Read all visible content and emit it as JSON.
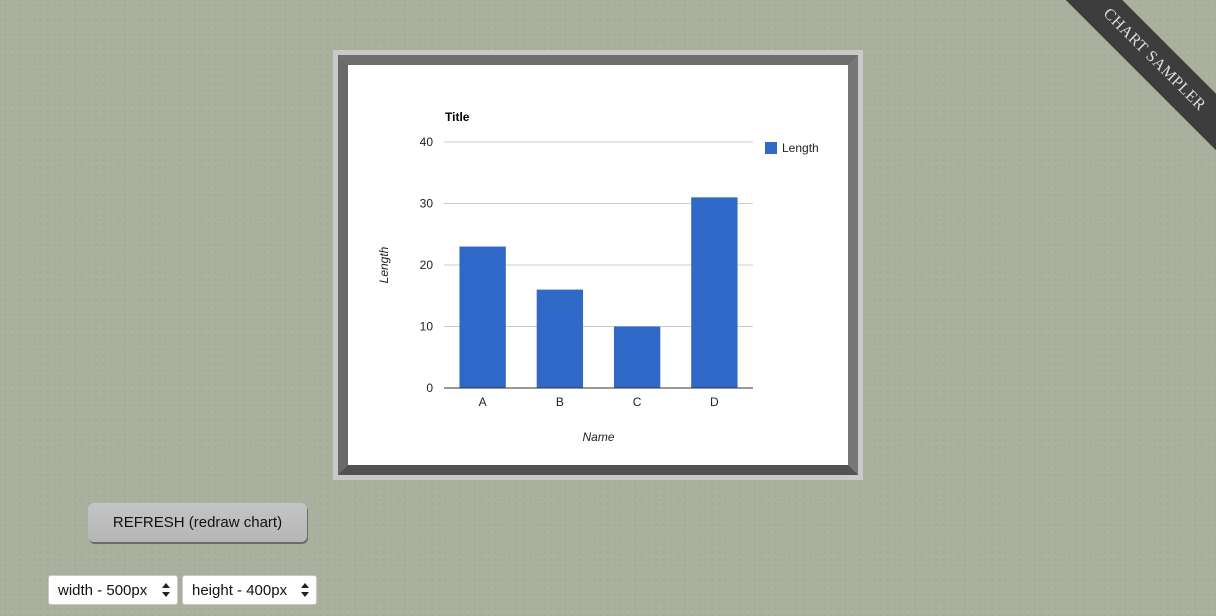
{
  "ribbon": {
    "label": "CHART SAMPLER",
    "background": "#3d3d3d"
  },
  "chart_data": {
    "type": "bar",
    "title": "Title",
    "xlabel": "Name",
    "ylabel": "Length",
    "categories": [
      "A",
      "B",
      "C",
      "D"
    ],
    "series": [
      {
        "name": "Length",
        "values": [
          23,
          16,
          10,
          31
        ],
        "color": "#3068c8"
      }
    ],
    "ylim": [
      0,
      40
    ],
    "yticks": [
      0,
      10,
      20,
      30,
      40
    ],
    "grid": true,
    "legend": "right"
  },
  "controls": {
    "refresh_label": "REFRESH (redraw chart)",
    "width_select": {
      "value": "width - 500px",
      "icon": "select-arrows-icon"
    },
    "height_select": {
      "value": "height - 400px",
      "icon": "select-arrows-icon"
    }
  },
  "colors": {
    "page_background": "#a9b09d",
    "frame": "#6e6e6e",
    "bar": "#3068c8"
  }
}
